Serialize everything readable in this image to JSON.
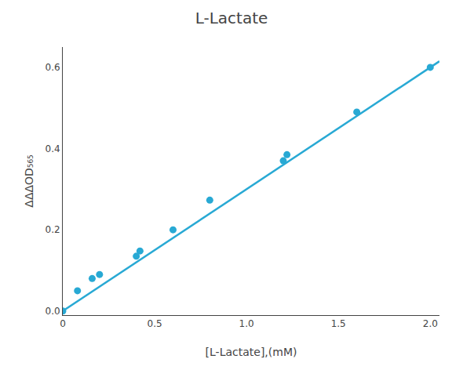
{
  "chart_data": {
    "type": "scatter",
    "title": "L-Lactate",
    "xlabel": "[L-Lactate],(mM)",
    "ylabel": "ΔΔΔOD₅₆₅",
    "series": [
      {
        "type": "line",
        "color": "#28A9D4",
        "x": [
          0.0,
          2.05
        ],
        "values": [
          0.0,
          0.615
        ]
      },
      {
        "type": "scatter",
        "color": "#28A9D4",
        "x": [
          0.0,
          0.08,
          0.16,
          0.2,
          0.4,
          0.42,
          0.6,
          0.8,
          1.2,
          1.22,
          1.6,
          2.0
        ],
        "values": [
          0.0,
          0.05,
          0.08,
          0.09,
          0.135,
          0.148,
          0.2,
          0.273,
          0.37,
          0.385,
          0.49,
          0.6
        ]
      }
    ],
    "xlim": [
      0.0,
      2.05
    ],
    "ylim": [
      -0.01,
      0.65
    ],
    "xticks": [
      0,
      0.5,
      {
        "value": 1.0,
        "label": "1.0"
      },
      1.5,
      {
        "value": 2.0,
        "label": "2.0"
      }
    ],
    "yticks": [
      {
        "value": 0.0,
        "label": "0.0"
      },
      0.2,
      0.4,
      0.6
    ],
    "grid": false
  }
}
